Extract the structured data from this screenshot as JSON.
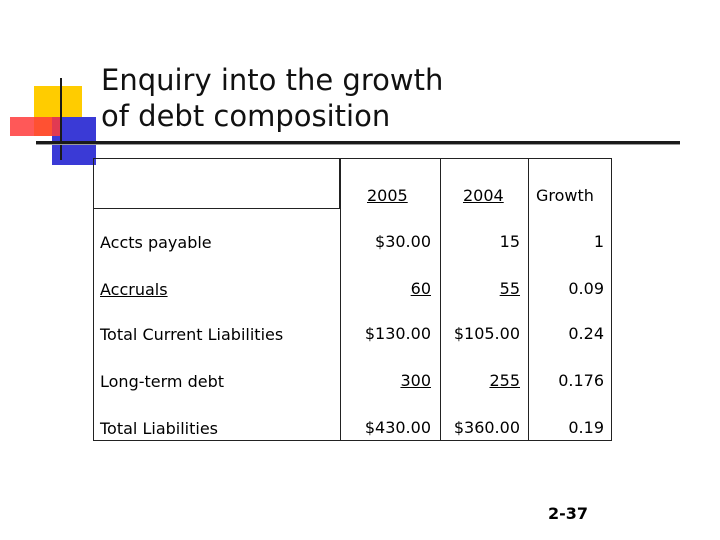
{
  "slide": {
    "title_line1": "Enquiry into the growth",
    "title_line2": "of debt composition",
    "slide_number": "2-37"
  },
  "table": {
    "headers": [
      "2005",
      "2004",
      "Growth"
    ],
    "rows": [
      {
        "label": "Accts payable",
        "v2005": "$30.00",
        "v2004": "15",
        "growth": "1"
      },
      {
        "label": "Accruals",
        "v2005": "60",
        "v2004": "55",
        "growth": "0.09"
      },
      {
        "label": "Total Current Liabilities",
        "v2005": "$130.00",
        "v2004": "$105.00",
        "growth": "0.24"
      },
      {
        "label": "Long-term debt",
        "v2005": "300",
        "v2004": "255",
        "growth": "0.176"
      },
      {
        "label": "Total Liabilities",
        "v2005": "$430.00",
        "v2004": "$360.00",
        "growth": "0.19"
      }
    ]
  },
  "colors": {
    "accent_yellow": "#ffcc00",
    "accent_red": "#ff3b3b",
    "accent_blue": "#3a3ad6"
  }
}
